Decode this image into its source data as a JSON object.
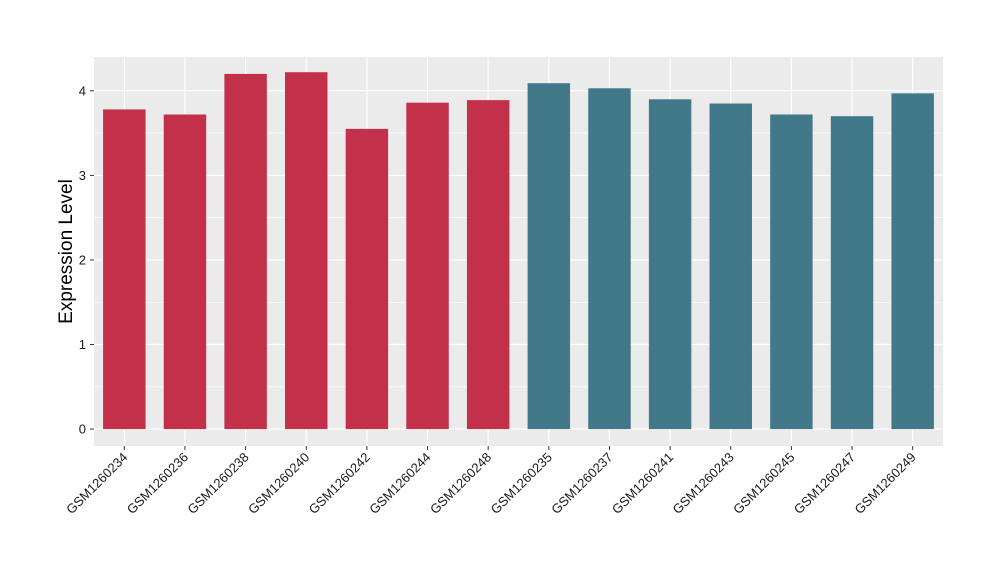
{
  "chart_data": {
    "type": "bar",
    "title": "",
    "xlabel": "",
    "ylabel": "Expression Level",
    "categories": [
      "GSM1260234",
      "GSM1260236",
      "GSM1260238",
      "GSM1260240",
      "GSM1260242",
      "GSM1260244",
      "GSM1260248",
      "GSM1260235",
      "GSM1260237",
      "GSM1260241",
      "GSM1260243",
      "GSM1260245",
      "GSM1260247",
      "GSM1260249"
    ],
    "values": [
      3.78,
      3.72,
      4.2,
      4.22,
      3.55,
      3.86,
      3.89,
      4.09,
      4.03,
      3.9,
      3.85,
      3.72,
      3.7,
      3.97
    ],
    "bar_colors": [
      "#c3304a",
      "#c3304a",
      "#c3304a",
      "#c3304a",
      "#c3304a",
      "#c3304a",
      "#c3304a",
      "#41788a",
      "#41788a",
      "#41788a",
      "#41788a",
      "#41788a",
      "#41788a",
      "#41788a"
    ],
    "yticks": [
      "0",
      "1",
      "2",
      "3",
      "4"
    ],
    "ylim": [
      -0.2,
      4.4
    ],
    "grid": true,
    "legend": "none",
    "colors": {
      "panel_background": "#ebebeb",
      "grid": "#ffffff",
      "group_a": "#c3304a",
      "group_b": "#41788a"
    }
  }
}
